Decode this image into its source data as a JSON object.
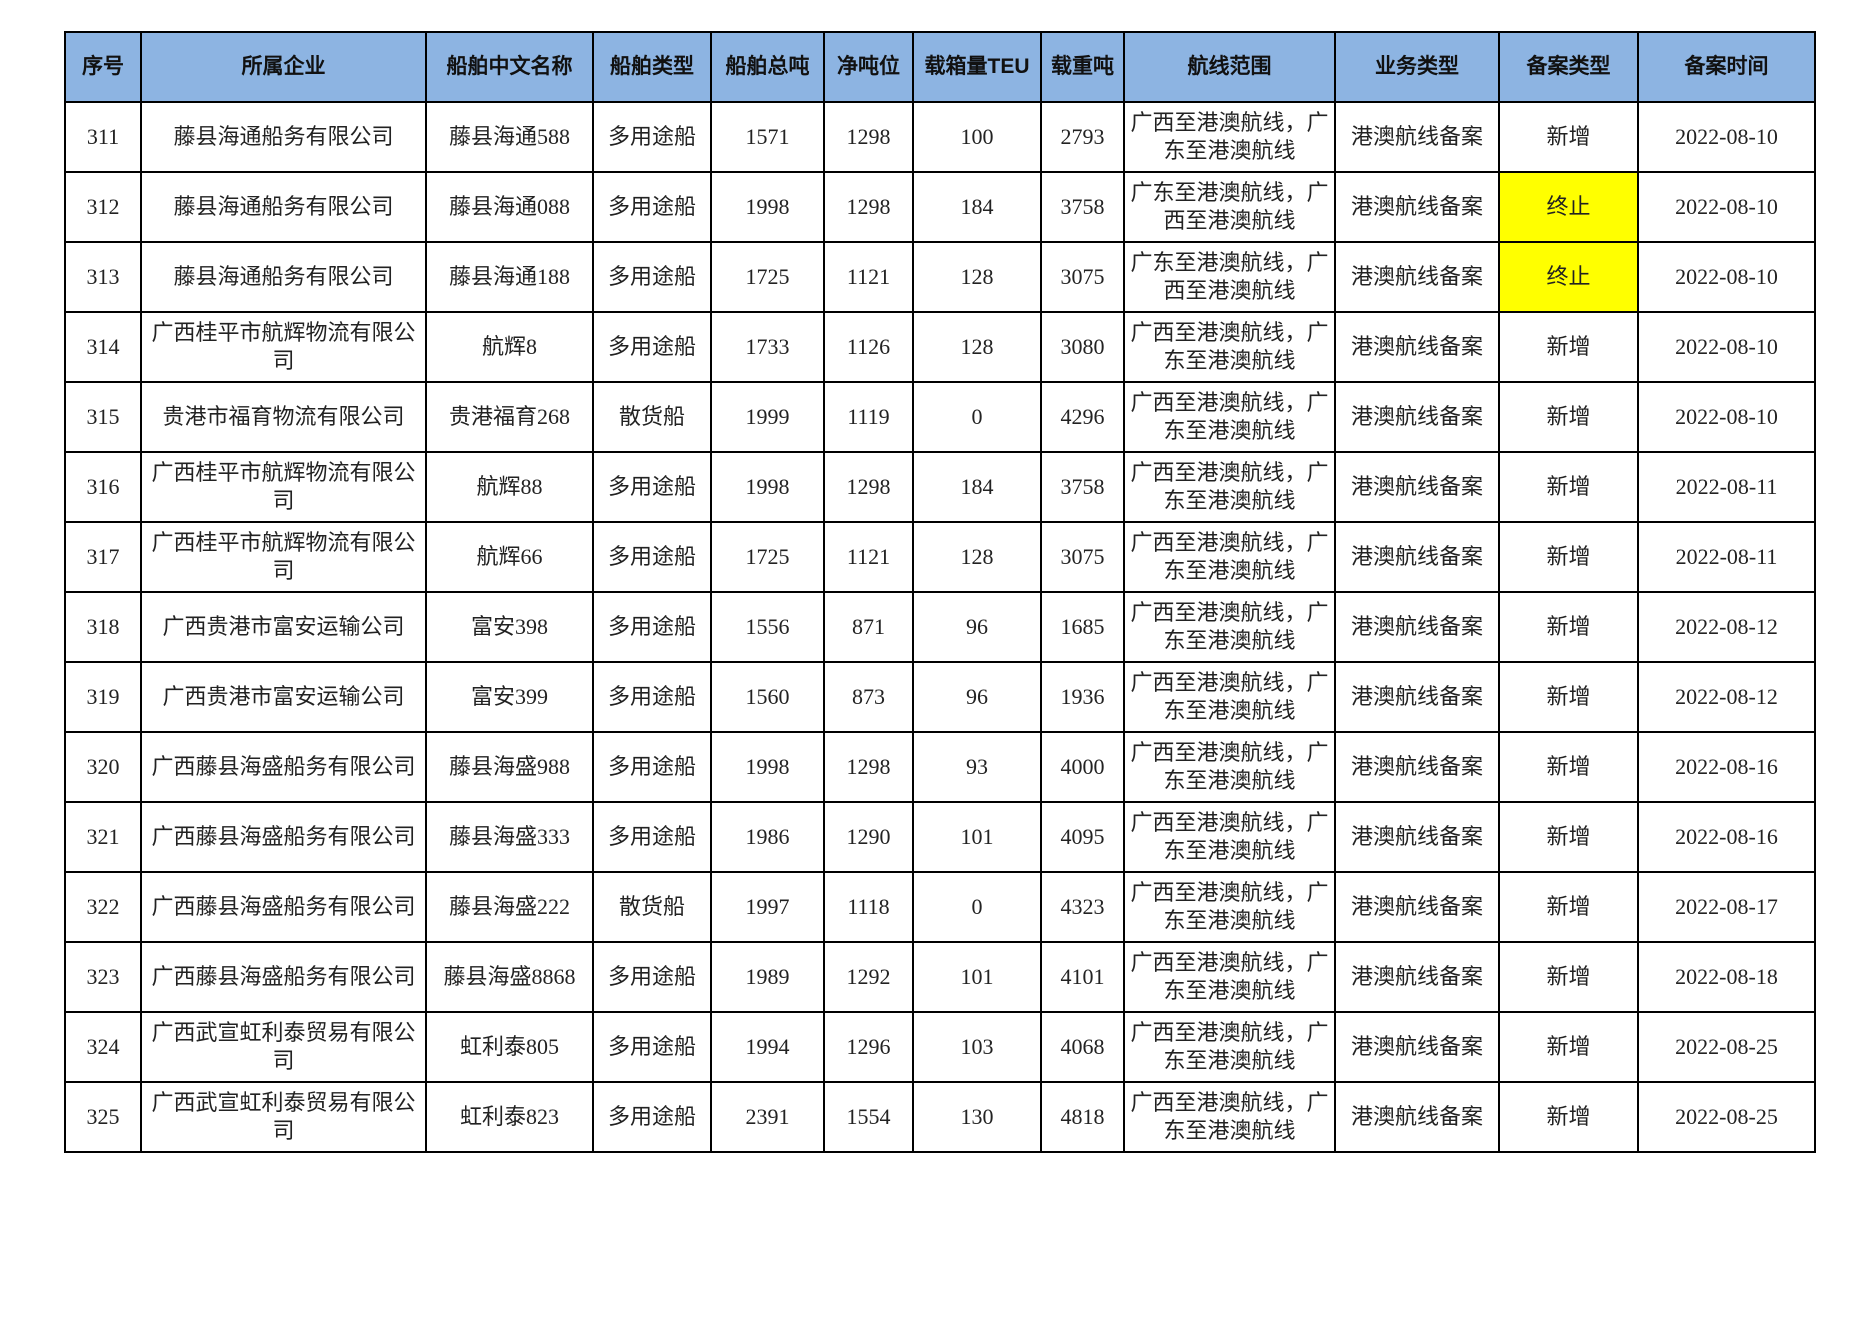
{
  "table": {
    "headers": [
      "序号",
      "所属企业",
      "船舶中文名称",
      "船舶类型",
      "船舶总吨",
      "净吨位",
      "载箱量TEU",
      "载重吨",
      "航线范围",
      "业务类型",
      "备案类型",
      "备案时间"
    ],
    "highlight_color": "#ffff00",
    "header_color": "#8db4e2",
    "rows": [
      [
        "311",
        "藤县海通船务有限公司",
        "藤县海通588",
        "多用途船",
        "1571",
        "1298",
        "100",
        "2793",
        "广西至港澳航线，广东至港澳航线",
        "港澳航线备案",
        "新增",
        "2022-08-10"
      ],
      [
        "312",
        "藤县海通船务有限公司",
        "藤县海通088",
        "多用途船",
        "1998",
        "1298",
        "184",
        "3758",
        "广东至港澳航线，广西至港澳航线",
        "港澳航线备案",
        "终止",
        "2022-08-10"
      ],
      [
        "313",
        "藤县海通船务有限公司",
        "藤县海通188",
        "多用途船",
        "1725",
        "1121",
        "128",
        "3075",
        "广东至港澳航线，广西至港澳航线",
        "港澳航线备案",
        "终止",
        "2022-08-10"
      ],
      [
        "314",
        "广西桂平市航辉物流有限公司",
        "航辉8",
        "多用途船",
        "1733",
        "1126",
        "128",
        "3080",
        "广西至港澳航线，广东至港澳航线",
        "港澳航线备案",
        "新增",
        "2022-08-10"
      ],
      [
        "315",
        "贵港市福育物流有限公司",
        "贵港福育268",
        "散货船",
        "1999",
        "1119",
        "0",
        "4296",
        "广西至港澳航线，广东至港澳航线",
        "港澳航线备案",
        "新增",
        "2022-08-10"
      ],
      [
        "316",
        "广西桂平市航辉物流有限公司",
        "航辉88",
        "多用途船",
        "1998",
        "1298",
        "184",
        "3758",
        "广西至港澳航线，广东至港澳航线",
        "港澳航线备案",
        "新增",
        "2022-08-11"
      ],
      [
        "317",
        "广西桂平市航辉物流有限公司",
        "航辉66",
        "多用途船",
        "1725",
        "1121",
        "128",
        "3075",
        "广西至港澳航线，广东至港澳航线",
        "港澳航线备案",
        "新增",
        "2022-08-11"
      ],
      [
        "318",
        "广西贵港市富安运输公司",
        "富安398",
        "多用途船",
        "1556",
        "871",
        "96",
        "1685",
        "广西至港澳航线，广东至港澳航线",
        "港澳航线备案",
        "新增",
        "2022-08-12"
      ],
      [
        "319",
        "广西贵港市富安运输公司",
        "富安399",
        "多用途船",
        "1560",
        "873",
        "96",
        "1936",
        "广西至港澳航线，广东至港澳航线",
        "港澳航线备案",
        "新增",
        "2022-08-12"
      ],
      [
        "320",
        "广西藤县海盛船务有限公司",
        "藤县海盛988",
        "多用途船",
        "1998",
        "1298",
        "93",
        "4000",
        "广西至港澳航线，广东至港澳航线",
        "港澳航线备案",
        "新增",
        "2022-08-16"
      ],
      [
        "321",
        "广西藤县海盛船务有限公司",
        "藤县海盛333",
        "多用途船",
        "1986",
        "1290",
        "101",
        "4095",
        "广西至港澳航线，广东至港澳航线",
        "港澳航线备案",
        "新增",
        "2022-08-16"
      ],
      [
        "322",
        "广西藤县海盛船务有限公司",
        "藤县海盛222",
        "散货船",
        "1997",
        "1118",
        "0",
        "4323",
        "广西至港澳航线，广东至港澳航线",
        "港澳航线备案",
        "新增",
        "2022-08-17"
      ],
      [
        "323",
        "广西藤县海盛船务有限公司",
        "藤县海盛8868",
        "多用途船",
        "1989",
        "1292",
        "101",
        "4101",
        "广西至港澳航线，广东至港澳航线",
        "港澳航线备案",
        "新增",
        "2022-08-18"
      ],
      [
        "324",
        "广西武宣虹利泰贸易有限公司",
        "虹利泰805",
        "多用途船",
        "1994",
        "1296",
        "103",
        "4068",
        "广西至港澳航线，广东至港澳航线",
        "港澳航线备案",
        "新增",
        "2022-08-25"
      ],
      [
        "325",
        "广西武宣虹利泰贸易有限公司",
        "虹利泰823",
        "多用途船",
        "2391",
        "1554",
        "130",
        "4818",
        "广西至港澳航线，广东至港澳航线",
        "港澳航线备案",
        "新增",
        "2022-08-25"
      ]
    ]
  }
}
